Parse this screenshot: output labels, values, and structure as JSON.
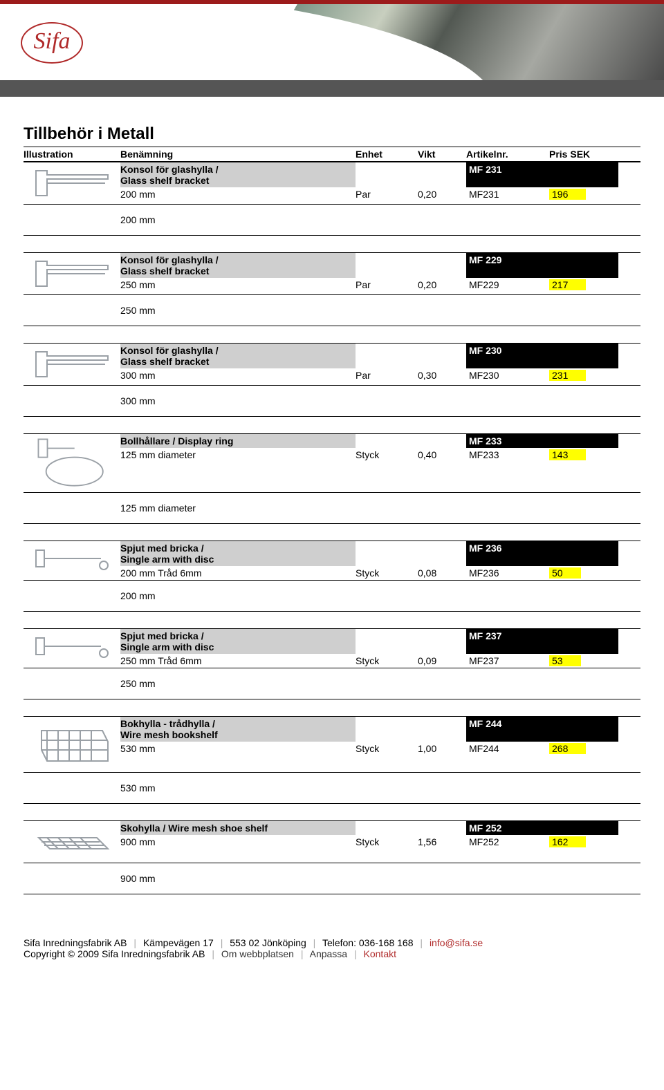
{
  "page": {
    "title": "Tillbehör i Metall",
    "logo_text": "Sifa"
  },
  "columns": {
    "illustration": "Illustration",
    "name": "Benämning",
    "unit": "Enhet",
    "weight": "Vikt",
    "article": "Artikelnr.",
    "price": "Pris SEK"
  },
  "products": [
    {
      "name_line1": "Konsol för glashylla /",
      "name_line2": "Glass shelf bracket",
      "article_header": "MF 231",
      "row": {
        "dim": "200 mm",
        "unit": "Par",
        "weight": "0,20",
        "article": "MF231",
        "price": "196"
      },
      "after": "200 mm",
      "icon": "bracket"
    },
    {
      "name_line1": "Konsol för glashylla /",
      "name_line2": "Glass shelf bracket",
      "article_header": "MF 229",
      "row": {
        "dim": "250 mm",
        "unit": "Par",
        "weight": "0,20",
        "article": "MF229",
        "price": "217"
      },
      "after": "250 mm",
      "icon": "bracket"
    },
    {
      "name_line1": "Konsol för glashylla /",
      "name_line2": "Glass shelf bracket",
      "article_header": "MF 230",
      "row": {
        "dim": "300 mm",
        "unit": "Par",
        "weight": "0,30",
        "article": "MF230",
        "price": "231"
      },
      "after": "300 mm",
      "icon": "bracket"
    },
    {
      "name_line1": "Bollhållare / Display ring",
      "name_line2": "",
      "article_header": "MF 233",
      "row": {
        "dim": "125 mm diameter",
        "unit": "Styck",
        "weight": "0,40",
        "article": "MF233",
        "price": "143"
      },
      "after": "125 mm diameter",
      "icon": "ring"
    },
    {
      "name_line1": "Spjut med bricka /",
      "name_line2": "Single arm with disc",
      "article_header": "MF 236",
      "row": {
        "dim": "200 mm  Tråd 6mm",
        "unit": "Styck",
        "weight": "0,08",
        "article": "MF236",
        "price": "50"
      },
      "after": "200 mm",
      "icon": "arm"
    },
    {
      "name_line1": "Spjut med bricka /",
      "name_line2": "Single arm with disc",
      "article_header": "MF 237",
      "row": {
        "dim": "250 mm  Tråd 6mm",
        "unit": "Styck",
        "weight": "0,09",
        "article": "MF237",
        "price": "53"
      },
      "after": "250 mm",
      "icon": "arm"
    },
    {
      "name_line1": "Bokhylla - trådhylla /",
      "name_line2": "Wire mesh bookshelf",
      "article_header": "MF 244",
      "row": {
        "dim": "530 mm",
        "unit": "Styck",
        "weight": "1,00",
        "article": "MF244",
        "price": "268"
      },
      "after": "530 mm",
      "icon": "basket"
    },
    {
      "name_line1": "Skohylla / Wire mesh shoe shelf",
      "name_line2": "",
      "article_header": "MF 252",
      "row": {
        "dim": "900 mm",
        "unit": "Styck",
        "weight": "1,56",
        "article": "MF252",
        "price": "162"
      },
      "after": "900 mm",
      "icon": "shelf"
    }
  ],
  "footer": {
    "company": "Sifa Inredningsfabrik AB",
    "address": "Kämpevägen 17",
    "zipcity": "553 02 Jönköping",
    "phone_label": "Telefon: 036-168 168",
    "email": "info@sifa.se",
    "copyright": "Copyright © 2009 Sifa Inredningsfabrik AB",
    "link_about": "Om webbplatsen",
    "link_customize": "Anpassa",
    "link_contact": "Kontakt"
  },
  "style": {
    "accent": "#b02a2a",
    "highlight": "#ffff00",
    "header_gray": "#cfcfcf",
    "black": "#000000"
  }
}
